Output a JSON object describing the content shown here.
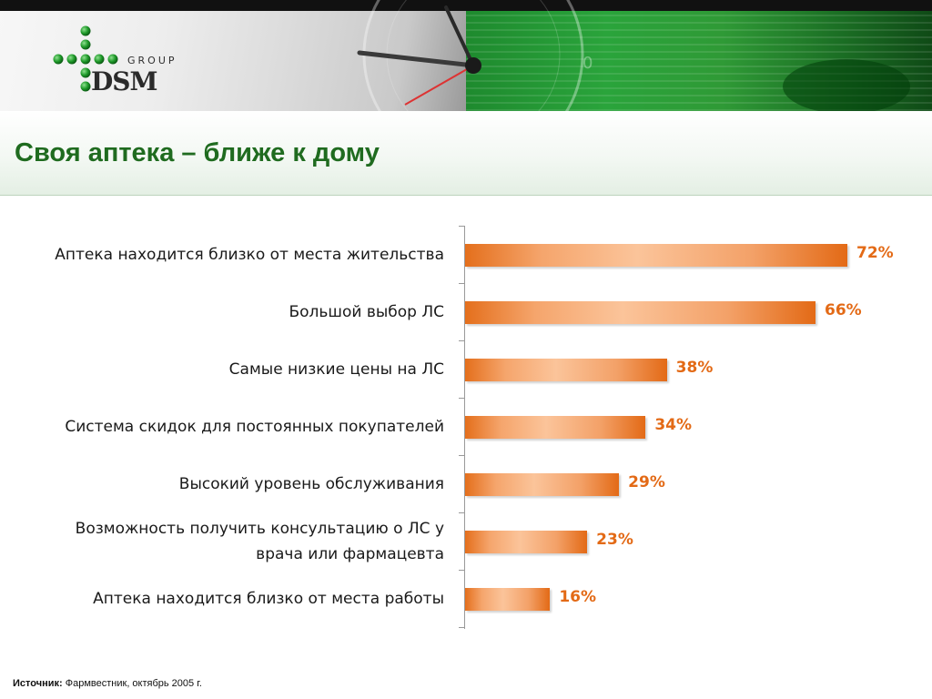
{
  "header": {
    "logo_group": "GROUP",
    "logo_dsm": "DSM"
  },
  "title": "Своя аптека – ближе к дому",
  "chart_data": {
    "type": "bar",
    "orientation": "horizontal",
    "categories": [
      "Аптека находится близко от места жительства",
      "Большой выбор ЛС",
      "Самые низкие цены на ЛС",
      "Система скидок для постоянных покупателей",
      "Высокий уровень обслуживания",
      "Возможность получить консультацию о ЛС у\nврача или фармацевта",
      "Аптека находится близко от места работы"
    ],
    "values": [
      72,
      66,
      38,
      34,
      29,
      23,
      16
    ],
    "value_labels": [
      "72%",
      "66%",
      "38%",
      "34%",
      "29%",
      "23%",
      "16%"
    ],
    "title": "",
    "xlabel": "",
    "ylabel": "",
    "xlim": [
      0,
      100
    ],
    "grid": false,
    "bar_color": "#e36a16"
  },
  "source": {
    "label": "Источник:",
    "text": "Фармвестник, октябрь 2005 г."
  }
}
